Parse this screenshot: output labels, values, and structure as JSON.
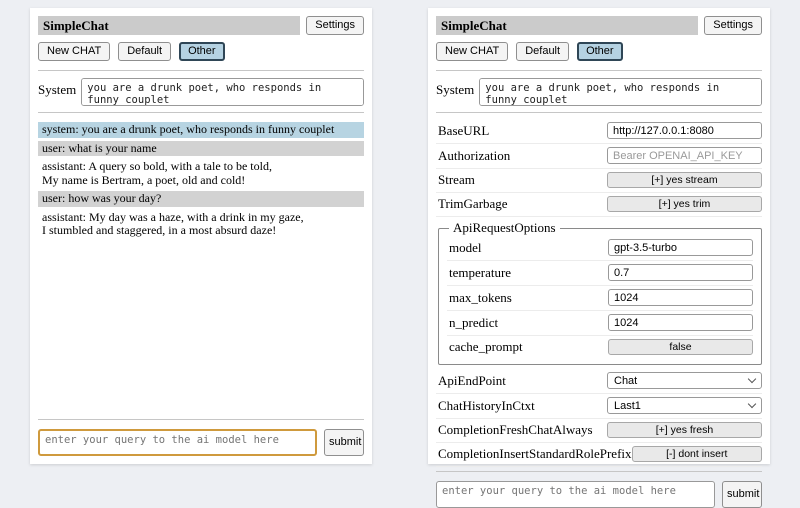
{
  "app": {
    "title": "SimpleChat",
    "settings_button": "Settings",
    "tabs": [
      {
        "label": "New CHAT",
        "selected": false
      },
      {
        "label": "Default",
        "selected": false
      },
      {
        "label": "Other",
        "selected": true
      }
    ],
    "system_label": "System",
    "system_prompt": "you are a drunk poet, who responds in funny couplet",
    "query_placeholder": "enter your query to the ai model here",
    "submit_label": "submit",
    "colors": {
      "selected_tab_bg": "#b5d2e2",
      "system_msg_bg": "#b7d4e2",
      "user_msg_bg": "#d2d2d2",
      "focused_query_border": "#cf9a3d",
      "titlebar_bg": "#cbcbcb"
    }
  },
  "chat": {
    "messages": [
      {
        "role": "system",
        "text": "system: you are a drunk poet, who responds in funny couplet"
      },
      {
        "role": "user",
        "text": "user: what is your name"
      },
      {
        "role": "assistant",
        "text": "assistant: A query so bold, with a tale to be told,\nMy name is Bertram, a poet, old and cold!"
      },
      {
        "role": "user",
        "text": "user: how was your day?"
      },
      {
        "role": "assistant",
        "text": "assistant: My day was a haze, with a drink in my gaze,\nI stumbled and staggered, in a most absurd daze!"
      }
    ]
  },
  "settings": {
    "base_url": {
      "label": "BaseURL",
      "value": "http://127.0.0.1:8080"
    },
    "authorization": {
      "label": "Authorization",
      "placeholder": "Bearer OPENAI_API_KEY"
    },
    "stream": {
      "label": "Stream",
      "button": "[+] yes stream"
    },
    "trim_garbage": {
      "label": "TrimGarbage",
      "button": "[+] yes trim"
    },
    "api_request_options": {
      "legend": "ApiRequestOptions",
      "model": {
        "label": "model",
        "value": "gpt-3.5-turbo"
      },
      "temperature": {
        "label": "temperature",
        "value": "0.7"
      },
      "max_tokens": {
        "label": "max_tokens",
        "value": "1024"
      },
      "n_predict": {
        "label": "n_predict",
        "value": "1024"
      },
      "cache_prompt": {
        "label": "cache_prompt",
        "button": "false"
      }
    },
    "api_endpoint": {
      "label": "ApiEndPoint",
      "value": "Chat"
    },
    "chat_history_in_ctxt": {
      "label": "ChatHistoryInCtxt",
      "value": "Last1"
    },
    "completion_fresh_chat_always": {
      "label": "CompletionFreshChatAlways",
      "button": "[+] yes fresh"
    },
    "completion_insert_standard_role_prefix": {
      "label": "CompletionInsertStandardRolePrefix",
      "button": "[-] dont insert"
    }
  }
}
